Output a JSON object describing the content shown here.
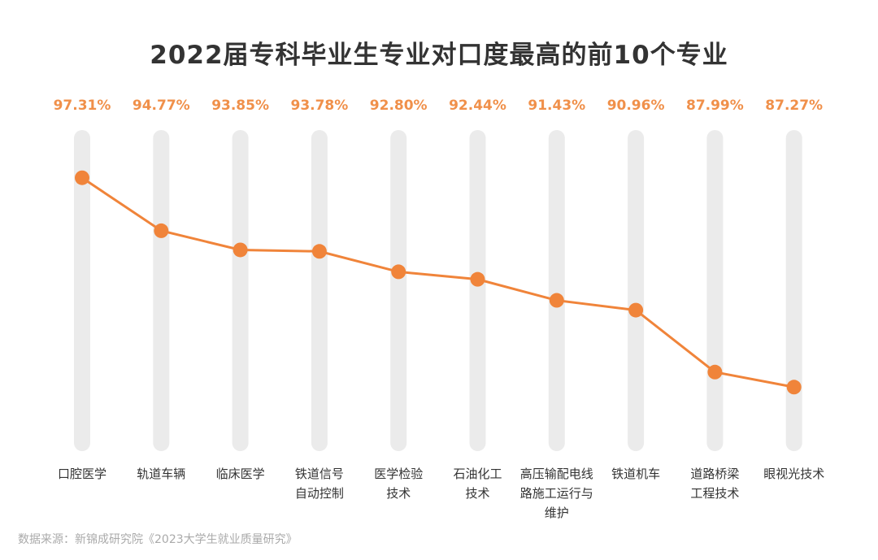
{
  "chart_data": {
    "type": "line",
    "title": "2022届专科毕业生专业对口度最高的前10个专业",
    "categories": [
      [
        "口腔医学"
      ],
      [
        "轨道车辆"
      ],
      [
        "临床医学"
      ],
      [
        "铁道信号",
        "自动控制"
      ],
      [
        "医学检验",
        "技术"
      ],
      [
        "石油化工",
        "技术"
      ],
      [
        "高压输配电线",
        "路施工运行与",
        "维护"
      ],
      [
        "铁道机车"
      ],
      [
        "道路桥梁",
        "工程技术"
      ],
      [
        "眼视光技术"
      ]
    ],
    "values": [
      97.31,
      94.77,
      93.85,
      93.78,
      92.8,
      92.44,
      91.43,
      90.96,
      87.99,
      87.27
    ],
    "value_labels": [
      "97.31%",
      "94.77%",
      "93.85%",
      "93.78%",
      "92.80%",
      "92.44%",
      "91.43%",
      "90.96%",
      "87.99%",
      "87.27%"
    ],
    "ylim": [
      84.2,
      99.6
    ],
    "grid": false,
    "y_axis_shown": false,
    "legend": "none",
    "colors": {
      "line": "#f0843a",
      "label": "#f0904a",
      "track": "#ebebeb",
      "title": "#333333",
      "category": "#333333"
    }
  },
  "footer": {
    "source": "数据来源：新锦成研究院《2023大学生就业质量研究》"
  }
}
